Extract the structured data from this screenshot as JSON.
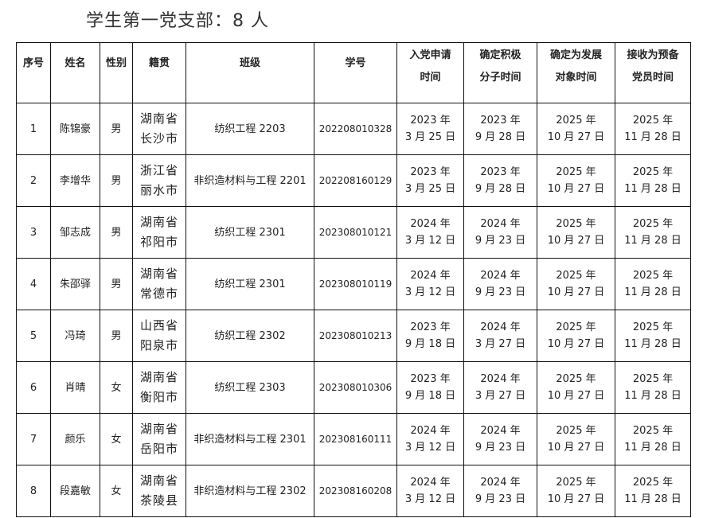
{
  "title": "学生第一党支部：8 人",
  "headers": [
    "序号",
    "姓名",
    "性别",
    "籍贯",
    "班级",
    "学号",
    "入党申请\n时间",
    "确定积极\n分子时间",
    "确定为发展\n对象时间",
    "接收为预备\n党员时间"
  ],
  "rows": [
    {
      "no": "1",
      "name": "陈锦豪",
      "gender": "男",
      "origin": [
        "湖南省",
        "长沙市"
      ],
      "class": "纺织工程 2203",
      "id": "202208010328",
      "apply": [
        "2023 年",
        "3 月 25 日"
      ],
      "activist": [
        "2023 年",
        "9 月 28 日"
      ],
      "candidate": [
        "2025 年",
        "10 月 27 日"
      ],
      "probationary": [
        "2025 年",
        "11 月 28 日"
      ]
    },
    {
      "no": "2",
      "name": "李增华",
      "gender": "男",
      "origin": [
        "浙江省",
        "丽水市"
      ],
      "class": "非织造材料与工程 2201",
      "id": "202208160129",
      "apply": [
        "2023 年",
        "3 月 25 日"
      ],
      "activist": [
        "2023 年",
        "9 月 28 日"
      ],
      "candidate": [
        "2025 年",
        "10 月 27 日"
      ],
      "probationary": [
        "2025 年",
        "11 月 28 日"
      ]
    },
    {
      "no": "3",
      "name": "邹志成",
      "gender": "男",
      "origin": [
        "湖南省",
        "祁阳市"
      ],
      "class": "纺织工程 2301",
      "id": "202308010121",
      "apply": [
        "2024 年",
        "3 月 12 日"
      ],
      "activist": [
        "2024 年",
        "9 月 23 日"
      ],
      "candidate": [
        "2025 年",
        "10 月 27 日"
      ],
      "probationary": [
        "2025 年",
        "11 月 28 日"
      ]
    },
    {
      "no": "4",
      "name": "朱邵驿",
      "gender": "男",
      "origin": [
        "湖南省",
        "常德市"
      ],
      "class": "纺织工程 2301",
      "id": "202308010119",
      "apply": [
        "2024 年",
        "3 月 12 日"
      ],
      "activist": [
        "2024 年",
        "9 月 23 日"
      ],
      "candidate": [
        "2025 年",
        "10 月 27 日"
      ],
      "probationary": [
        "2025 年",
        "11 月 28 日"
      ]
    },
    {
      "no": "5",
      "name": "冯琦",
      "gender": "男",
      "origin": [
        "山西省",
        "阳泉市"
      ],
      "class": "纺织工程 2302",
      "id": "202308010213",
      "apply": [
        "2023 年",
        "9 月 18 日"
      ],
      "activist": [
        "2024 年",
        "3 月 27 日"
      ],
      "candidate": [
        "2025 年",
        "10 月 27 日"
      ],
      "probationary": [
        "2025 年",
        "11 月 28 日"
      ]
    },
    {
      "no": "6",
      "name": "肖晴",
      "gender": "女",
      "origin": [
        "湖南省",
        "衡阳市"
      ],
      "class": "纺织工程 2303",
      "id": "202308010306",
      "apply": [
        "2023 年",
        "9 月 18 日"
      ],
      "activist": [
        "2024 年",
        "3 月 27 日"
      ],
      "candidate": [
        "2025 年",
        "10 月 27 日"
      ],
      "probationary": [
        "2025 年",
        "11 月 28 日"
      ]
    },
    {
      "no": "7",
      "name": "颜乐",
      "gender": "女",
      "origin": [
        "湖南省",
        "岳阳市"
      ],
      "class": "非织造材料与工程 2301",
      "id": "202308160111",
      "apply": [
        "2024 年",
        "3 月 12 日"
      ],
      "activist": [
        "2024 年",
        "9 月 23 日"
      ],
      "candidate": [
        "2025 年",
        "10 月 27 日"
      ],
      "probationary": [
        "2025 年",
        "11 月 28 日"
      ]
    },
    {
      "no": "8",
      "name": "段嘉敏",
      "gender": "女",
      "origin": [
        "湖南省",
        "茶陵县"
      ],
      "class": "非织造材料与工程 2302",
      "id": "202308160208",
      "apply": [
        "2024 年",
        "3 月 12 日"
      ],
      "activist": [
        "2024 年",
        "9 月 23 日"
      ],
      "candidate": [
        "2025 年",
        "10 月 27 日"
      ],
      "probationary": [
        "2025 年",
        "11 月 28 日"
      ]
    }
  ]
}
